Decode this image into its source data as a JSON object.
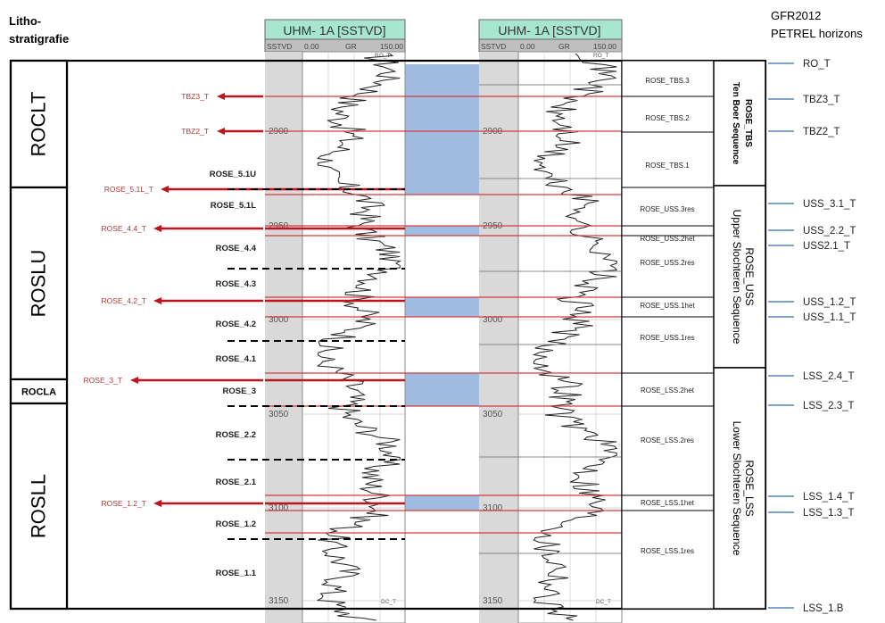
{
  "header": {
    "litho_line1": "Litho-",
    "litho_line2": "stratigrafie",
    "gfr_line1": "GFR2012",
    "gfr_line2": "PETREL horizons"
  },
  "logs": [
    {
      "title": "UHM-  1A [SSTVD]",
      "h_sstvd": "SSTVD",
      "h_min": "0.00",
      "h_gr": "GR",
      "h_max": "150.00",
      "top_marker": "RO_T",
      "bot_marker": "DC_T"
    },
    {
      "title": "UHM-  1A [SSTVD]",
      "h_sstvd": "SSTVD",
      "h_min": "0.00",
      "h_gr": "GR",
      "h_max": "150.00",
      "top_marker": "RO_T",
      "bot_marker": "DC_T"
    }
  ],
  "depths": [
    "2900",
    "2950",
    "3000",
    "3050",
    "3100",
    "3150"
  ],
  "lithostrat_units": [
    "ROCLT",
    "ROSLU",
    "ROCLA",
    "ROSLL"
  ],
  "units": [
    "ROSE_5.1U",
    "ROSE_5.1L",
    "ROSE_4.4",
    "ROSE_4.3",
    "ROSE_4.2",
    "ROSE_4.1",
    "ROSE_3",
    "ROSE_2.2",
    "ROSE_2.1",
    "ROSE_1.2",
    "ROSE_1.1"
  ],
  "red_markers": [
    "TBZ3_T",
    "TBZ2_T",
    "ROSE_5.1L_T",
    "ROSE_4.4_T",
    "ROSE_4.2_T",
    "ROSE_3_T",
    "ROSE_1.2_T"
  ],
  "zones": [
    "ROSE_TBS.3",
    "ROSE_TBS.2",
    "ROSE_TBS.1",
    "ROSE_USS.3res",
    "ROSE_USS.2het",
    "ROSE_USS.2res",
    "ROSE_USS.1het",
    "ROSE_USS.1res",
    "ROSE_LSS.2het",
    "ROSE_LSS.2res",
    "ROSE_LSS.1het",
    "ROSE_LSS.1res"
  ],
  "sequences": [
    {
      "line1": "Ten Boer Sequence",
      "line2": "ROSE_TBS"
    },
    {
      "line1": "Upper Slochteren Sequence",
      "line2": "ROSE_USS"
    },
    {
      "line1": "Lower Slochteren Sequence",
      "line2": "ROSE_LSS"
    }
  ],
  "horizons": [
    "RO_T",
    "TBZ3_T",
    "TBZ2_T",
    "USS_3.1_T",
    "USS_2.2_T",
    "USS2.1_T",
    "USS_1.2_T",
    "USS_1.1_T",
    "LSS_2.4_T",
    "LSS_2.3_T",
    "LSS_1.4_T",
    "LSS_1.3_T",
    "LSS_1.B"
  ],
  "colors": {
    "log_header": "#a8e6d0",
    "fill": "#8fb0dc",
    "red": "#c0141c",
    "red_label": "#b03a3a",
    "horizon_blue": "#2e6fb0"
  }
}
